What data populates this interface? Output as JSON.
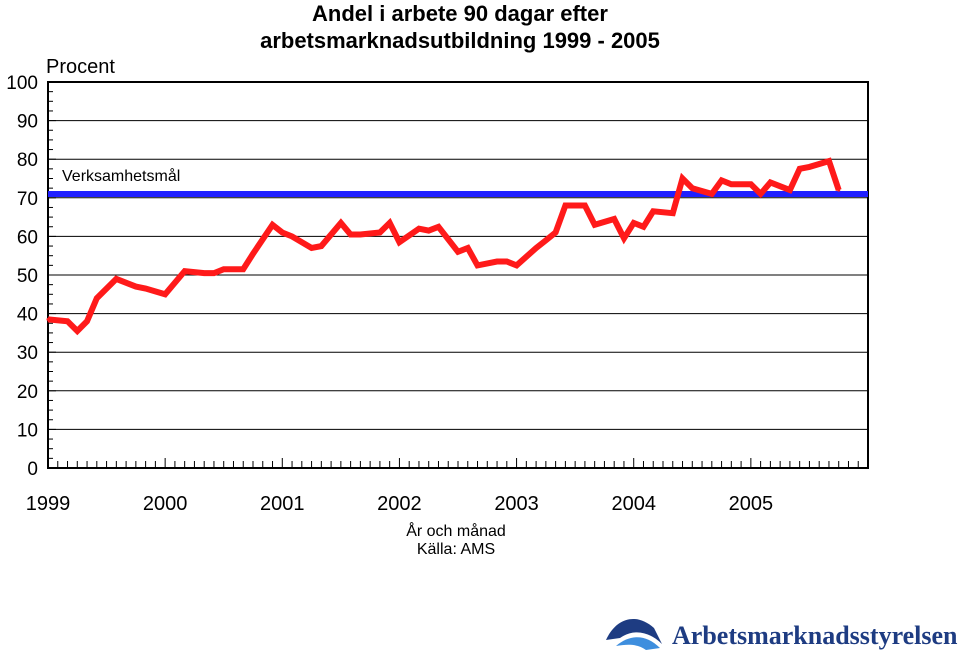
{
  "chart_data": {
    "type": "line",
    "title": "Andel i arbete 90 dagar efter",
    "subtitle": "arbetsmarknadsutbildning 1999 - 2005",
    "ylabel": "Procent",
    "xlabel": "År och månad",
    "source": "Källa: AMS",
    "ylim": [
      0,
      100
    ],
    "yticks": [
      "0",
      "10",
      "20",
      "30",
      "40",
      "50",
      "60",
      "70",
      "80",
      "90",
      "100"
    ],
    "xticks": [
      "1999",
      "2000",
      "2001",
      "2002",
      "2003",
      "2004",
      "2005"
    ],
    "grid": true,
    "target": {
      "name": "Verksamhetsmål",
      "value": 71,
      "color": "#1f1fff"
    },
    "series": [
      {
        "color": "#ff1a1a",
        "x": [
          "1999-01",
          "1999-03",
          "1999-04",
          "1999-05",
          "1999-06",
          "1999-08",
          "1999-10",
          "1999-11",
          "2000-01",
          "2000-03",
          "2000-05",
          "2000-06",
          "2000-07",
          "2000-09",
          "2000-10",
          "2000-12",
          "2001-01",
          "2001-02",
          "2001-04",
          "2001-05",
          "2001-07",
          "2001-08",
          "2001-09",
          "2001-11",
          "2001-12",
          "2002-01",
          "2002-03",
          "2002-04",
          "2002-05",
          "2002-07",
          "2002-08",
          "2002-09",
          "2002-11",
          "2002-12",
          "2003-01",
          "2003-03",
          "2003-04",
          "2003-05",
          "2003-06",
          "2003-08",
          "2003-09",
          "2003-11",
          "2003-12",
          "2004-01",
          "2004-02",
          "2004-03",
          "2004-05",
          "2004-06",
          "2004-07",
          "2004-09",
          "2004-10",
          "2004-11",
          "2005-01",
          "2005-02",
          "2005-03",
          "2005-05",
          "2005-06",
          "2005-07",
          "2005-09",
          "2005-10"
        ],
        "values": [
          38.5,
          38,
          35.5,
          38,
          44,
          49,
          47,
          46.5,
          45,
          51,
          50.5,
          50.5,
          51.5,
          51.5,
          55.5,
          63,
          61,
          60,
          57,
          57.5,
          63.5,
          60.5,
          60.5,
          61,
          63.5,
          58.5,
          62,
          61.5,
          62.5,
          56,
          57,
          52.5,
          53.5,
          53.5,
          52.5,
          57,
          59,
          61,
          68,
          68,
          63,
          64.5,
          59.5,
          63.5,
          62.5,
          66.5,
          66,
          75,
          72.5,
          71,
          74.5,
          73.5,
          73.5,
          71,
          74,
          72,
          77.5,
          78,
          79.5,
          72
        ]
      }
    ]
  },
  "logo": {
    "text": "Arbetsmarknadsstyrelsen",
    "color": "#1e3c82",
    "accent": "#3e8ede"
  }
}
